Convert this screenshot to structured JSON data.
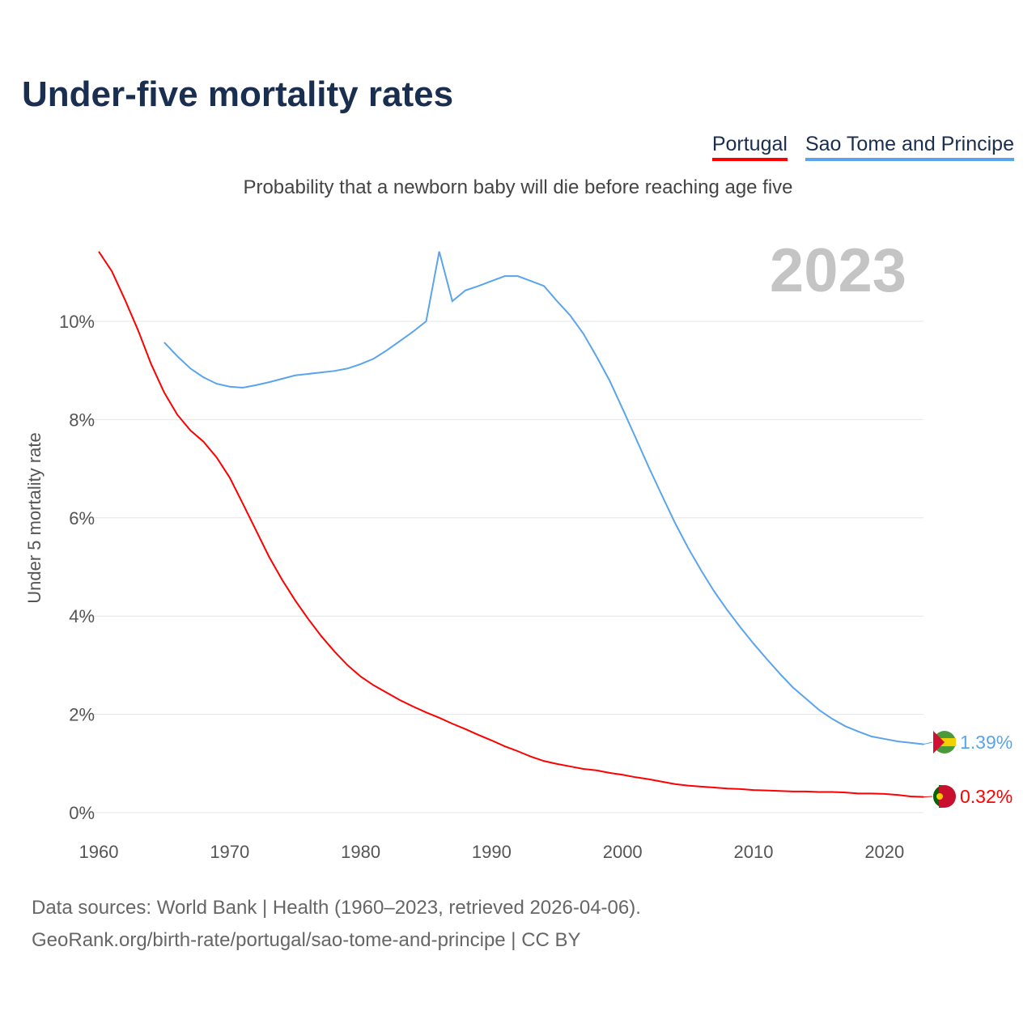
{
  "title": "Under-five mortality rates",
  "subtitle": "Probability that a newborn baby will die before reaching age five",
  "colors": {
    "Portugal": "#ff0000",
    "Sao Tome and Principe": "#5aa4ec"
  },
  "sources": [
    "Data sources: World Bank | Health (1960–2023, retrieved 2026-04-06).",
    "GeoRank.org/birth-rate/portugal/sao-tome-and-principe | CC BY"
  ],
  "chart_data": {
    "type": "line",
    "title": "Under-five mortality rates",
    "year_label": "2023",
    "xlabel": "",
    "ylabel": "Under 5 mortality rate",
    "xlim": [
      1960,
      2023
    ],
    "ylim": [
      0,
      11.5
    ],
    "xticks": [
      1960,
      1970,
      1980,
      1990,
      2000,
      2010,
      2020
    ],
    "yticks": [
      0,
      2,
      4,
      6,
      8,
      10
    ],
    "ytick_labels": [
      "0%",
      "2%",
      "4%",
      "6%",
      "8%",
      "10%"
    ],
    "grid": true,
    "legend": "top-right",
    "series": [
      {
        "name": "Portugal",
        "start": 1960,
        "end_label": "0.32%",
        "values": [
          11.42,
          11.02,
          10.44,
          9.82,
          9.13,
          8.55,
          8.1,
          7.78,
          7.55,
          7.23,
          6.82,
          6.29,
          5.75,
          5.21,
          4.74,
          4.32,
          3.94,
          3.59,
          3.28,
          3.0,
          2.77,
          2.59,
          2.44,
          2.29,
          2.16,
          2.04,
          1.93,
          1.81,
          1.7,
          1.58,
          1.47,
          1.35,
          1.25,
          1.14,
          1.05,
          0.99,
          0.94,
          0.89,
          0.86,
          0.81,
          0.77,
          0.72,
          0.68,
          0.63,
          0.58,
          0.55,
          0.53,
          0.51,
          0.49,
          0.48,
          0.46,
          0.45,
          0.44,
          0.43,
          0.43,
          0.42,
          0.42,
          0.41,
          0.39,
          0.39,
          0.38,
          0.36,
          0.33,
          0.32
        ]
      },
      {
        "name": "Sao Tome and Principe",
        "start": 1965,
        "end_label": "1.39%",
        "values": [
          9.57,
          9.29,
          9.04,
          8.86,
          8.73,
          8.67,
          8.65,
          8.7,
          8.76,
          8.83,
          8.9,
          8.93,
          8.96,
          8.99,
          9.04,
          9.13,
          9.24,
          9.41,
          9.6,
          9.79,
          10.0,
          11.42,
          10.41,
          10.63,
          10.72,
          10.82,
          10.92,
          10.92,
          10.82,
          10.72,
          10.41,
          10.12,
          9.75,
          9.29,
          8.8,
          8.22,
          7.63,
          7.03,
          6.46,
          5.9,
          5.39,
          4.93,
          4.5,
          4.12,
          3.77,
          3.44,
          3.13,
          2.83,
          2.55,
          2.32,
          2.09,
          1.91,
          1.76,
          1.65,
          1.55,
          1.5,
          1.45,
          1.42,
          1.39
        ]
      }
    ]
  }
}
